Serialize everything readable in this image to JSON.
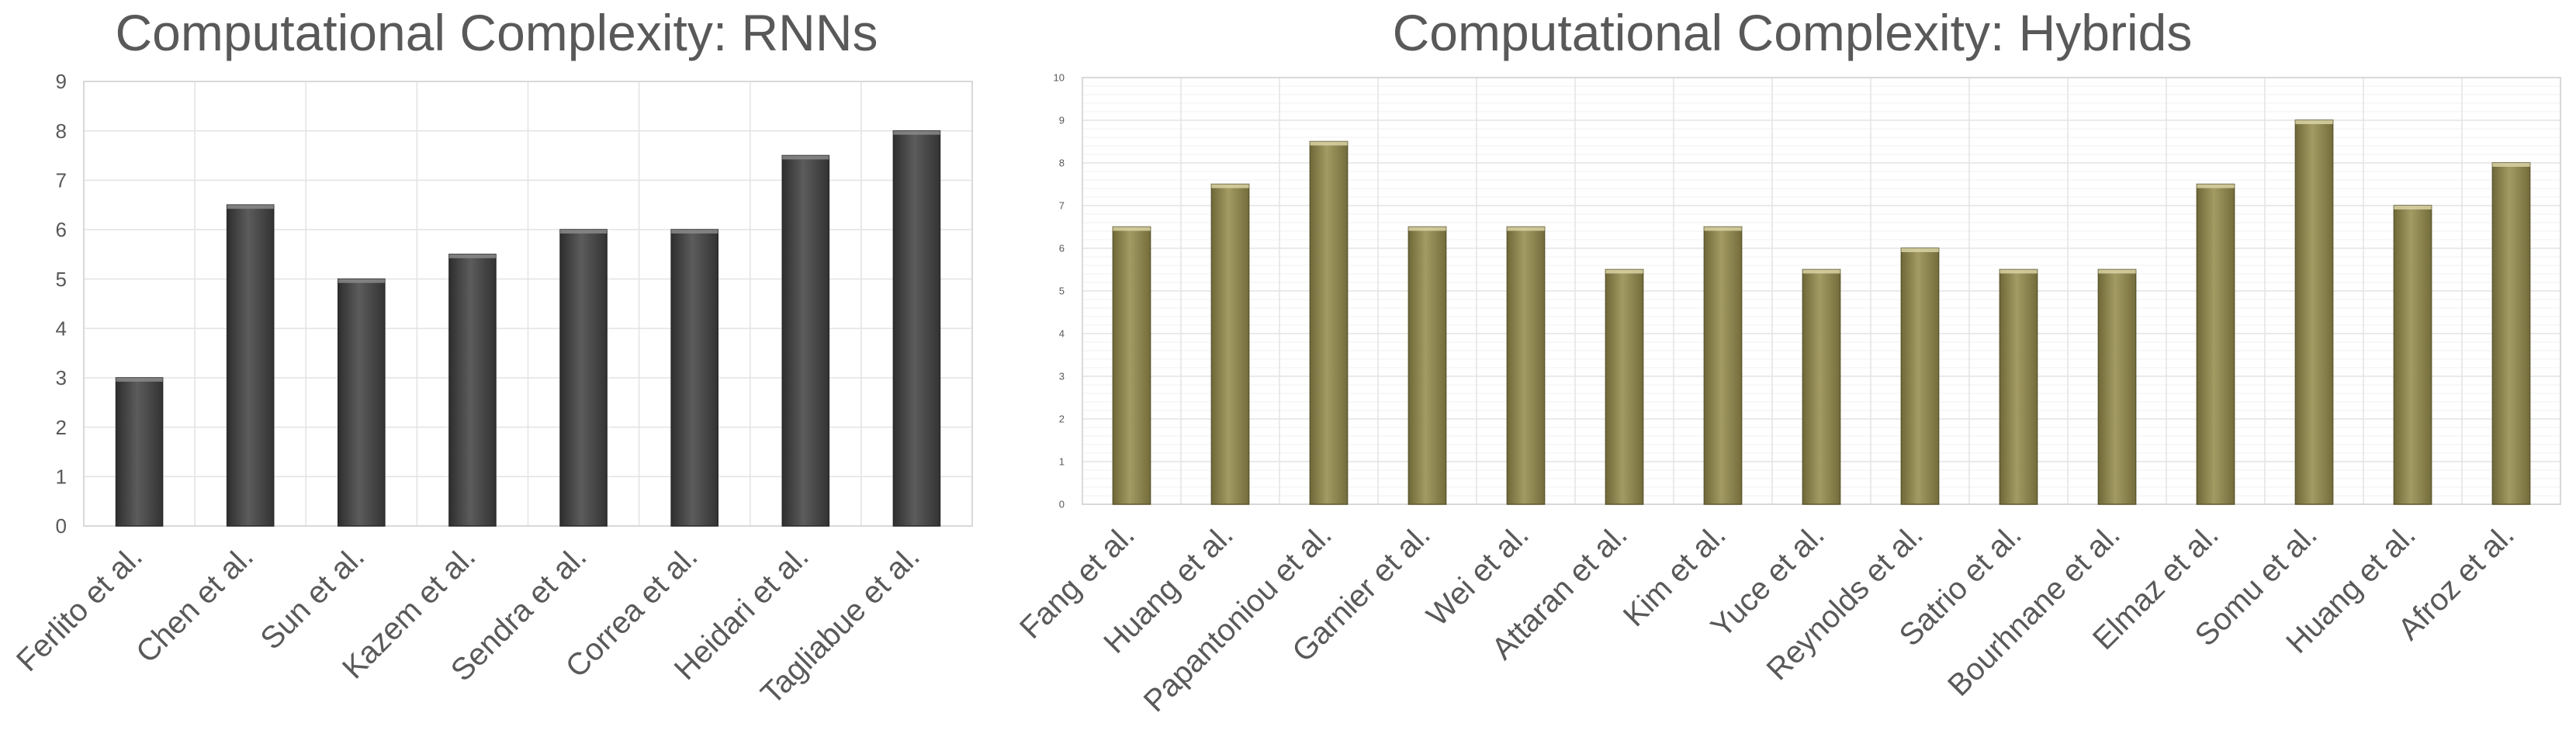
{
  "chart_data": [
    {
      "type": "bar",
      "title": "Computational Complexity: RNNs",
      "xlabel": "",
      "ylabel": "",
      "ylim": [
        0,
        9
      ],
      "yticks": [
        0,
        1,
        2,
        3,
        4,
        5,
        6,
        7,
        8,
        9
      ],
      "grid": true,
      "legend": "none",
      "bar_color": "#4a4a4a",
      "categories": [
        "Ferlito et al.",
        "Chen et al.",
        "Sun et al.",
        "Kazem et al.",
        "Sendra et al.",
        "Correa et al.",
        "Heidari et al.",
        "Tagliabue et al."
      ],
      "values": [
        3,
        6.5,
        5,
        5.5,
        6,
        6,
        7.5,
        8
      ]
    },
    {
      "type": "bar",
      "title": "Computational Complexity: Hybrids",
      "xlabel": "",
      "ylabel": "",
      "ylim": [
        0,
        10
      ],
      "yticks": [
        0,
        1,
        2,
        3,
        4,
        5,
        6,
        7,
        8,
        9,
        10
      ],
      "grid": true,
      "legend": "none",
      "bar_color": "#8f8752",
      "categories": [
        "Fang et al.",
        "Huang et al.",
        "Papantoniou et al.",
        "Garnier et al.",
        "Wei et al.",
        "Attaran et al.",
        "Kim et al.",
        "Yuce et al.",
        "Reynolds et al.",
        "Satrio et al.",
        "Bourhnane et al.",
        "Elmaz et al.",
        "Somu et al.",
        "Huang et al.",
        "Afroz et al."
      ],
      "values": [
        6.5,
        7.5,
        8.5,
        6.5,
        6.5,
        5.5,
        6.5,
        5.5,
        6,
        5.5,
        5.5,
        7.5,
        9,
        7,
        8
      ]
    }
  ]
}
